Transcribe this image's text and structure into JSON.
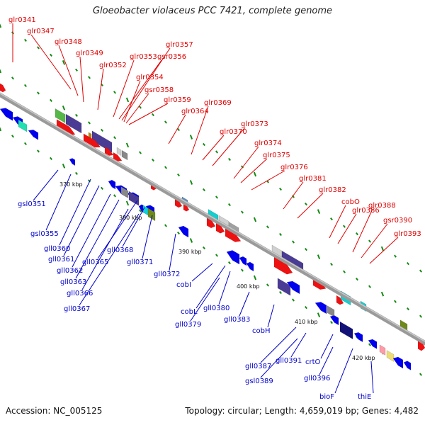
{
  "title": "Gloeobacter violaceus PCC 7421, complete genome",
  "footer": {
    "accession": "Accession: NC_005125",
    "summary": "Topology: circular; Length: 4,659,019 bp; Genes: 4,482"
  },
  "colors": {
    "forward_label": "#e00000",
    "reverse_label": "#0000cc",
    "backbone": "#8a8a8a",
    "tick": "#138a13"
  },
  "kbp_ticks": [
    {
      "label": "370 kbp"
    },
    {
      "label": "380 kbp"
    },
    {
      "label": "390 kbp"
    },
    {
      "label": "400 kbp"
    },
    {
      "label": "410 kbp"
    },
    {
      "label": "420 kbp"
    }
  ],
  "forward_genes": [
    {
      "label": "glr0341"
    },
    {
      "label": "glr0347"
    },
    {
      "label": "glr0348"
    },
    {
      "label": "glr0349"
    },
    {
      "label": "glr0352"
    },
    {
      "label": "glr0353"
    },
    {
      "label": "gsr0356"
    },
    {
      "label": "glr0357"
    },
    {
      "label": "glr0354"
    },
    {
      "label": "gsr0358"
    },
    {
      "label": "glr0359"
    },
    {
      "label": "glr0364"
    },
    {
      "label": "glr0369"
    },
    {
      "label": "glr0370"
    },
    {
      "label": "glr0373"
    },
    {
      "label": "glr0374"
    },
    {
      "label": "glr0375"
    },
    {
      "label": "glr0376"
    },
    {
      "label": "glr0381"
    },
    {
      "label": "glr0382"
    },
    {
      "label": "cobO"
    },
    {
      "label": "glr0386"
    },
    {
      "label": "glr0388"
    },
    {
      "label": "gsr0390"
    },
    {
      "label": "glr0393"
    }
  ],
  "reverse_genes": [
    {
      "label": "gsl0351"
    },
    {
      "label": "gsl0355"
    },
    {
      "label": "gll0360"
    },
    {
      "label": "gll0361"
    },
    {
      "label": "gll0362"
    },
    {
      "label": "gll0363"
    },
    {
      "label": "gll0366"
    },
    {
      "label": "gll0367"
    },
    {
      "label": "gll0365"
    },
    {
      "label": "gll0368"
    },
    {
      "label": "gll0371"
    },
    {
      "label": "gll0372"
    },
    {
      "label": "cobI"
    },
    {
      "label": "cobL"
    },
    {
      "label": "gll0380"
    },
    {
      "label": "gll0379"
    },
    {
      "label": "gll0383"
    },
    {
      "label": "cobH"
    },
    {
      "label": "gll0387"
    },
    {
      "label": "gll0391"
    },
    {
      "label": "gsl0389"
    },
    {
      "label": "crtO"
    },
    {
      "label": "gll0396"
    },
    {
      "label": "bioF"
    },
    {
      "label": "thiE"
    }
  ]
}
